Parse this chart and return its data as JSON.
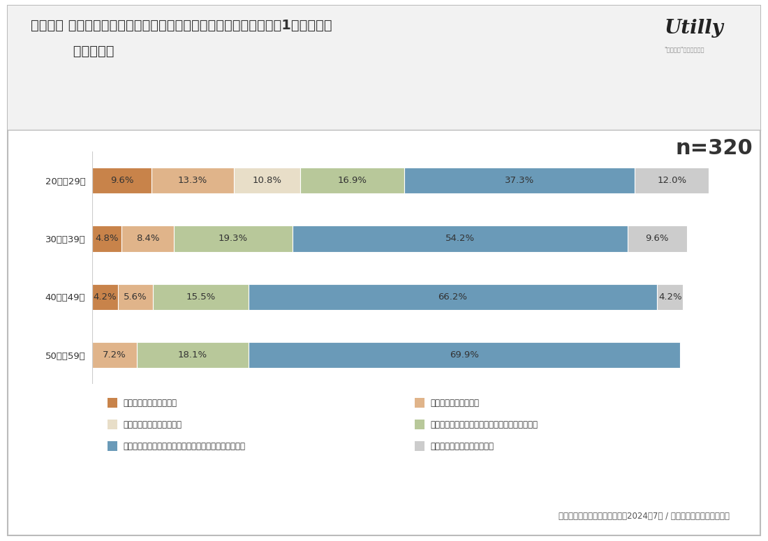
{
  "title_line1": "【質問】 民泊を利用したことがありますか？最も当てはまるものを1つ選択して",
  "title_line2": "         ください。",
  "n_label": "n=320",
  "source": "民泊の利用経験に関する調査（2024年7月 / インターネットリサーチ）",
  "categories": [
    "20歳～29歳",
    "30歳～39歳",
    "40歳～49歳",
    "50歳～59歳"
  ],
  "series": [
    {
      "label": "民泊をよく利用している",
      "color": "#C8834A",
      "values": [
        9.6,
        4.8,
        4.2,
        0.0
      ]
    },
    {
      "label": "民泊をたまに利用する",
      "color": "#E0B48A",
      "values": [
        13.3,
        8.4,
        5.6,
        7.2
      ]
    },
    {
      "label": "民泊を利用したことがある",
      "color": "#E8DEC8",
      "values": [
        10.8,
        0.0,
        0.0,
        0.0
      ]
    },
    {
      "label": "民泊の利用経験はないが、利用してみたいと思う",
      "color": "#B8C89A",
      "values": [
        16.9,
        19.3,
        15.5,
        18.1
      ]
    },
    {
      "label": "民泊の利用経験はないが、利用してみたいとは思わない",
      "color": "#6A9AB8",
      "values": [
        37.3,
        54.2,
        66.2,
        69.9
      ]
    },
    {
      "label": "わからない／回答したくない",
      "color": "#CCCCCC",
      "values": [
        12.0,
        9.6,
        4.2,
        0.0
      ]
    }
  ],
  "bar_height": 0.45,
  "background_color": "#FFFFFF",
  "text_color": "#333333",
  "title_fontsize": 14,
  "label_fontsize": 9.5,
  "tick_fontsize": 9.5,
  "legend_fontsize": 8.5,
  "n_fontsize": 22
}
